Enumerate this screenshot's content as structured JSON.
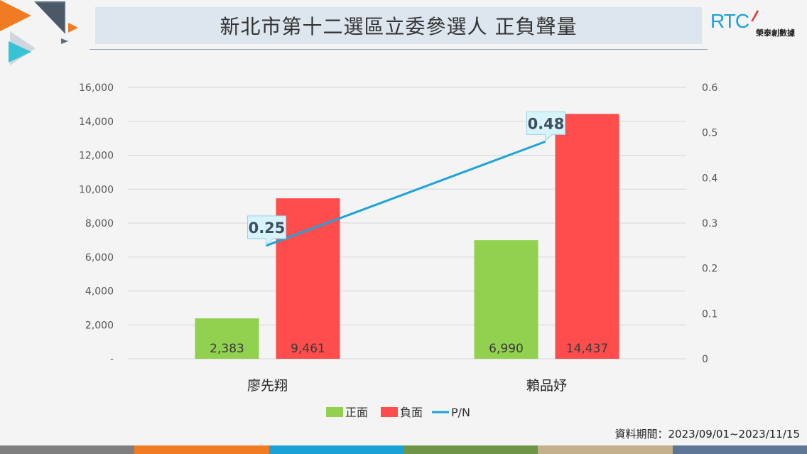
{
  "page": {
    "title": "新北市第十二選區立委參選人 正負聲量"
  },
  "brand": {
    "mark": "RTC",
    "name": "榮泰創數據"
  },
  "source": {
    "label": "資料期間：2023/09/01~2023/11/15"
  },
  "colors": {
    "positive": "#92d050",
    "negative": "#ff4d4d",
    "ratio": "#1ea3d8",
    "bottom_bar": [
      "#7f7f7f",
      "#f07b22",
      "#1aa2d6",
      "#6e9445",
      "#c3b08c",
      "#5e7696"
    ]
  },
  "chart_data": {
    "type": "bar",
    "categories": [
      "廖先翔",
      "賴品妤"
    ],
    "series": [
      {
        "name": "正面",
        "type": "bar",
        "axis": "left",
        "values": [
          2383,
          6990
        ],
        "labels": [
          "2,383",
          "6,990"
        ]
      },
      {
        "name": "負面",
        "type": "bar",
        "axis": "left",
        "values": [
          9461,
          14437
        ],
        "labels": [
          "9,461",
          "14,437"
        ]
      },
      {
        "name": "P/N",
        "type": "line",
        "axis": "right",
        "values": [
          0.25,
          0.48
        ],
        "labels": [
          "0.25",
          "0.48"
        ]
      }
    ],
    "y_left": {
      "min": 0,
      "max": 16000,
      "ticks": [
        "-",
        "2,000",
        "4,000",
        "6,000",
        "8,000",
        "10,000",
        "12,000",
        "14,000",
        "16,000"
      ]
    },
    "y_right": {
      "min": 0,
      "max": 0.6,
      "ticks": [
        "0",
        "0.1",
        "0.2",
        "0.3",
        "0.4",
        "0.5",
        "0.6"
      ]
    },
    "grid": true,
    "legend": "bottom"
  }
}
